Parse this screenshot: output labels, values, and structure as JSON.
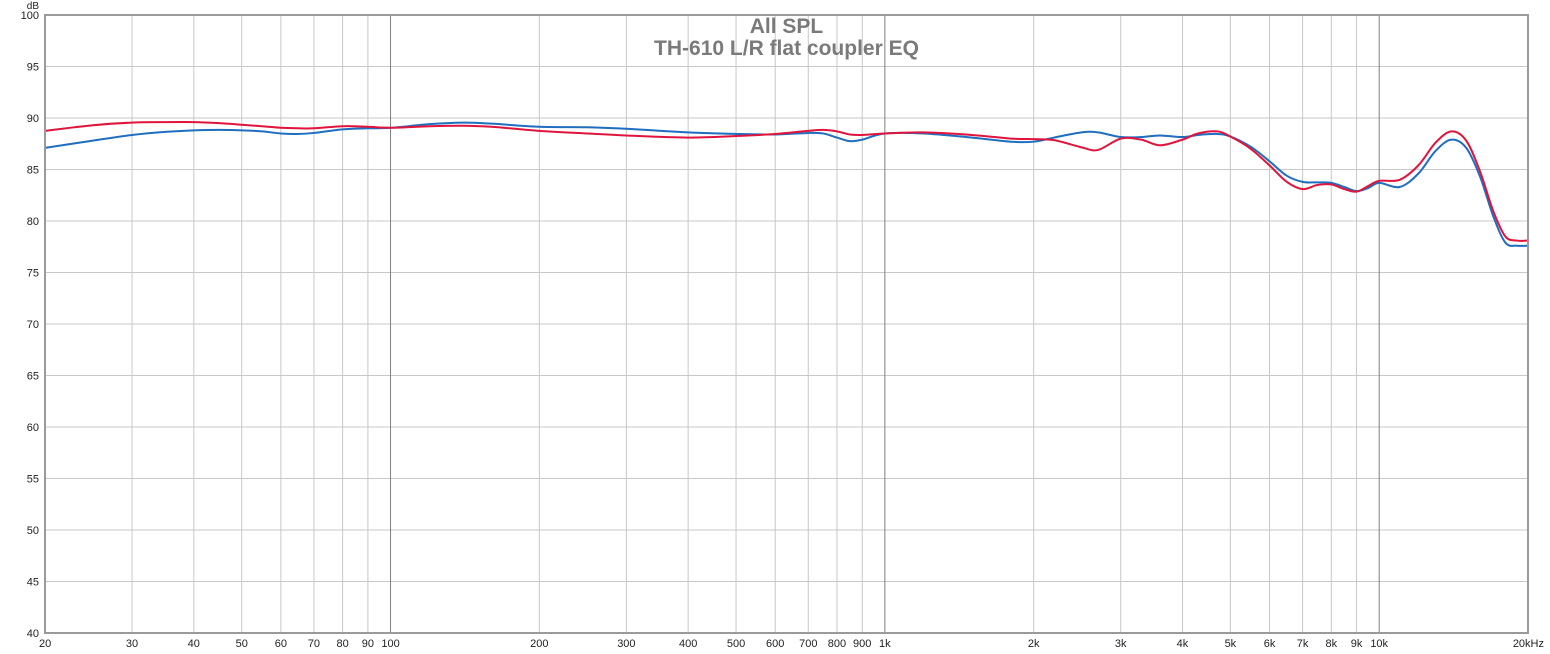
{
  "chart_data": {
    "type": "line",
    "title": "All SPL",
    "subtitle": "TH-610 L/R flat coupler EQ",
    "xlabel": "",
    "ylabel": "dB",
    "x_unit_label": "20kHz",
    "x_scale": "log",
    "xlim": [
      20,
      20000
    ],
    "ylim": [
      40,
      100
    ],
    "grid": true,
    "legend": "none",
    "y_ticks": [
      40,
      45,
      50,
      55,
      60,
      65,
      70,
      75,
      80,
      85,
      90,
      95,
      100
    ],
    "x_ticks": [
      {
        "value": 20,
        "label": "20"
      },
      {
        "value": 30,
        "label": "30"
      },
      {
        "value": 40,
        "label": "40"
      },
      {
        "value": 50,
        "label": "50"
      },
      {
        "value": 60,
        "label": "60"
      },
      {
        "value": 70,
        "label": "70"
      },
      {
        "value": 80,
        "label": "80"
      },
      {
        "value": 90,
        "label": "90"
      },
      {
        "value": 100,
        "label": "100"
      },
      {
        "value": 200,
        "label": "200"
      },
      {
        "value": 300,
        "label": "300"
      },
      {
        "value": 400,
        "label": "400"
      },
      {
        "value": 500,
        "label": "500"
      },
      {
        "value": 600,
        "label": "600"
      },
      {
        "value": 700,
        "label": "700"
      },
      {
        "value": 800,
        "label": "800"
      },
      {
        "value": 900,
        "label": "900"
      },
      {
        "value": 1000,
        "label": "1k"
      },
      {
        "value": 2000,
        "label": "2k"
      },
      {
        "value": 3000,
        "label": "3k"
      },
      {
        "value": 4000,
        "label": "4k"
      },
      {
        "value": 5000,
        "label": "5k"
      },
      {
        "value": 6000,
        "label": "6k"
      },
      {
        "value": 7000,
        "label": "7k"
      },
      {
        "value": 8000,
        "label": "8k"
      },
      {
        "value": 9000,
        "label": "9k"
      },
      {
        "value": 10000,
        "label": "10k"
      },
      {
        "value": 20000,
        "label": "20kHz"
      }
    ],
    "major_x": [
      100,
      1000,
      10000
    ],
    "series": [
      {
        "color": "#1f6ebf",
        "x": [
          20,
          25,
          30,
          35,
          40,
          45,
          50,
          55,
          60,
          65,
          70,
          80,
          90,
          100,
          120,
          140,
          160,
          200,
          250,
          300,
          400,
          500,
          600,
          700,
          750,
          800,
          850,
          900,
          1000,
          1200,
          1500,
          1800,
          2000,
          2200,
          2500,
          2700,
          3000,
          3300,
          3600,
          4000,
          4300,
          4700,
          5000,
          5500,
          6000,
          6500,
          7000,
          7500,
          8000,
          8500,
          9000,
          9500,
          10000,
          11000,
          12000,
          13000,
          14000,
          15000,
          16000,
          17000,
          18000,
          19000,
          20000
        ],
        "y": [
          87.1,
          87.8,
          88.35,
          88.65,
          88.8,
          88.85,
          88.8,
          88.7,
          88.5,
          88.45,
          88.55,
          88.9,
          89.0,
          89.05,
          89.4,
          89.55,
          89.45,
          89.15,
          89.1,
          88.95,
          88.6,
          88.45,
          88.4,
          88.55,
          88.5,
          88.1,
          87.75,
          87.9,
          88.5,
          88.5,
          88.1,
          87.7,
          87.7,
          88.1,
          88.6,
          88.6,
          88.15,
          88.15,
          88.3,
          88.15,
          88.35,
          88.45,
          88.2,
          87.2,
          85.8,
          84.4,
          83.8,
          83.75,
          83.7,
          83.3,
          82.9,
          83.2,
          83.7,
          83.3,
          84.6,
          86.8,
          87.9,
          87.1,
          84.3,
          80.5,
          77.9,
          77.6,
          77.6
        ]
      },
      {
        "color": "#e0143c",
        "x": [
          20,
          25,
          30,
          35,
          40,
          45,
          50,
          55,
          60,
          65,
          70,
          80,
          90,
          100,
          120,
          140,
          160,
          200,
          250,
          300,
          400,
          500,
          600,
          700,
          750,
          800,
          850,
          900,
          1000,
          1200,
          1500,
          1800,
          2000,
          2200,
          2500,
          2700,
          3000,
          3300,
          3600,
          4000,
          4300,
          4700,
          5000,
          5500,
          6000,
          6500,
          7000,
          7500,
          8000,
          8500,
          9000,
          9500,
          10000,
          11000,
          12000,
          13000,
          14000,
          15000,
          16000,
          17000,
          18000,
          19000,
          20000
        ],
        "y": [
          88.75,
          89.3,
          89.55,
          89.6,
          89.6,
          89.5,
          89.35,
          89.2,
          89.05,
          89.0,
          89.0,
          89.2,
          89.15,
          89.05,
          89.2,
          89.25,
          89.15,
          88.75,
          88.5,
          88.3,
          88.1,
          88.25,
          88.45,
          88.75,
          88.85,
          88.7,
          88.4,
          88.35,
          88.5,
          88.6,
          88.35,
          88.0,
          87.95,
          87.85,
          87.15,
          86.9,
          88.0,
          87.9,
          87.35,
          87.9,
          88.5,
          88.7,
          88.2,
          87.0,
          85.4,
          83.8,
          83.1,
          83.5,
          83.55,
          83.1,
          82.85,
          83.4,
          83.9,
          84.0,
          85.4,
          87.6,
          88.7,
          87.8,
          84.8,
          81.0,
          78.5,
          78.1,
          78.1
        ]
      }
    ]
  }
}
